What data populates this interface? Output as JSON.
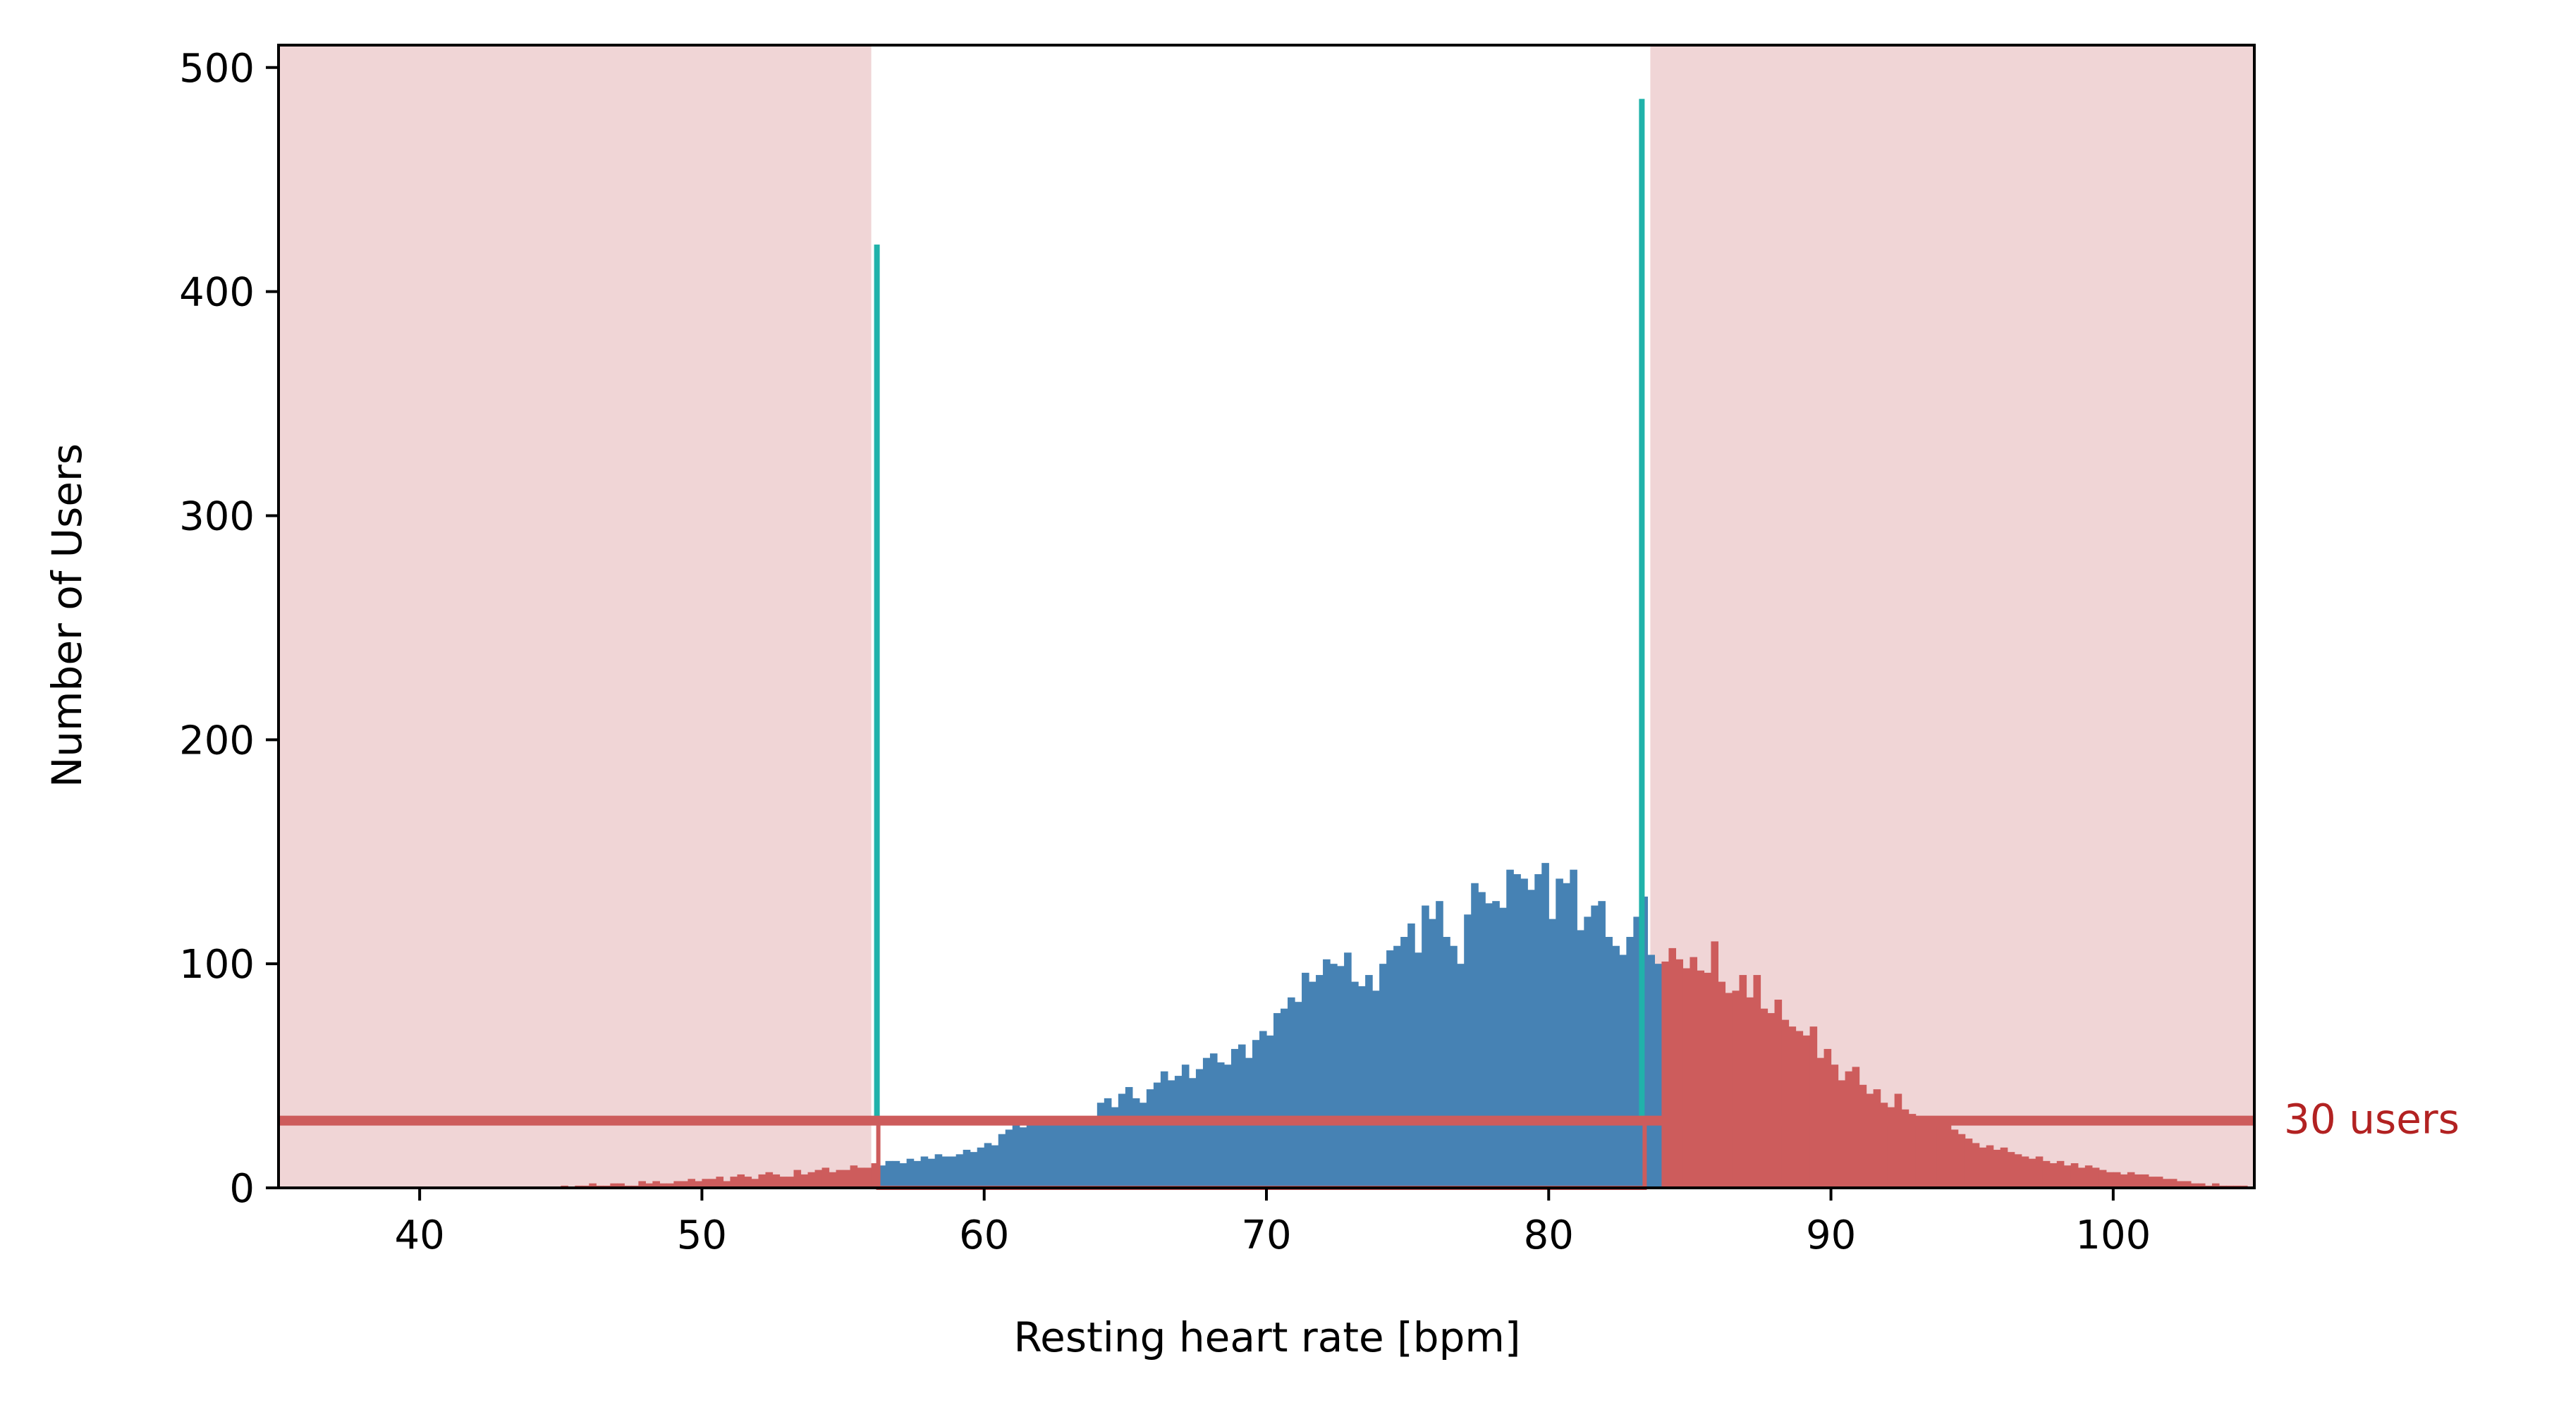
{
  "chart_data": {
    "type": "bar",
    "title": "",
    "xlabel": "Resting heart rate [bpm]",
    "ylabel": "Number of Users",
    "xlim": [
      35,
      105
    ],
    "ylim": [
      0,
      510
    ],
    "xticks": [
      40,
      50,
      60,
      70,
      80,
      90,
      100
    ],
    "yticks": [
      0,
      100,
      200,
      300,
      400,
      500
    ],
    "grid": false,
    "legend": "none",
    "bin_width": 0.25,
    "colors": {
      "kept_bars": "#4682b4",
      "excluded_bars": "#cd5c5c",
      "excluded_region": "#f0d5d6",
      "threshold_line": "#cd5c5c",
      "threshold_label": "#b22222",
      "boundary_spikes": "#20b2aa"
    },
    "excluded_regions": [
      {
        "from": 35,
        "to": 56.0
      },
      {
        "from": 83.6,
        "to": 105
      }
    ],
    "threshold": {
      "value": 30,
      "label": "30 users"
    },
    "spikes": [
      {
        "x": 56.2,
        "value": 421
      },
      {
        "x": 83.3,
        "value": 486
      }
    ],
    "kept_range": [
      56.25,
      84.0
    ],
    "histogram": {
      "x_start": 40.0,
      "values": [
        0,
        0,
        0,
        0,
        0,
        0,
        0,
        0,
        0,
        0,
        0,
        0,
        0,
        0,
        0,
        0,
        0,
        0,
        0,
        0,
        1,
        0,
        1,
        1,
        2,
        1,
        1,
        2,
        2,
        1,
        1,
        3,
        2,
        3,
        2,
        2,
        3,
        3,
        4,
        3,
        4,
        4,
        5,
        3,
        5,
        6,
        5,
        4,
        6,
        7,
        6,
        5,
        5,
        8,
        6,
        7,
        8,
        9,
        7,
        8,
        8,
        10,
        9,
        9,
        11,
        10,
        12,
        12,
        11,
        13,
        12,
        14,
        13,
        15,
        14,
        14,
        15,
        17,
        16,
        18,
        20,
        19,
        24,
        26,
        28,
        27,
        29,
        30,
        28,
        30,
        29,
        31,
        30,
        32,
        30,
        31,
        38,
        40,
        36,
        42,
        45,
        40,
        38,
        44,
        47,
        52,
        48,
        50,
        55,
        49,
        53,
        58,
        60,
        56,
        55,
        62,
        64,
        58,
        66,
        70,
        68,
        78,
        80,
        85,
        83,
        96,
        92,
        95,
        102,
        100,
        99,
        105,
        92,
        90,
        95,
        88,
        100,
        106,
        108,
        112,
        118,
        105,
        126,
        120,
        128,
        112,
        108,
        100,
        122,
        136,
        132,
        127,
        128,
        125,
        142,
        140,
        138,
        133,
        140,
        145,
        120,
        138,
        136,
        142,
        115,
        121,
        126,
        128,
        112,
        108,
        104,
        112,
        121,
        130,
        104,
        100,
        101,
        107,
        102,
        98,
        103,
        97,
        96,
        110,
        92,
        87,
        88,
        95,
        85,
        95,
        80,
        78,
        84,
        75,
        72,
        70,
        68,
        72,
        58,
        62,
        55,
        48,
        52,
        54,
        46,
        42,
        44,
        38,
        36,
        42,
        35,
        33,
        30,
        31,
        32,
        30,
        28,
        26,
        24,
        22,
        20,
        18,
        19,
        17,
        18,
        16,
        15,
        14,
        13,
        14,
        12,
        11,
        12,
        10,
        11,
        9,
        10,
        9,
        8,
        7,
        7,
        6,
        7,
        6,
        6,
        5,
        5,
        4,
        4,
        3,
        3,
        2,
        2,
        1,
        2,
        1,
        1,
        1,
        1,
        0,
        0,
        0,
        0,
        0,
        0,
        0,
        0,
        0,
        0,
        0,
        0,
        0,
        0,
        0,
        0,
        0,
        0,
        0,
        0,
        0,
        0,
        0,
        0,
        0,
        0,
        0,
        0,
        0,
        0,
        0,
        0,
        0,
        0,
        0,
        0,
        0,
        0,
        0,
        0,
        0,
        0,
        0,
        0,
        0
      ]
    }
  }
}
